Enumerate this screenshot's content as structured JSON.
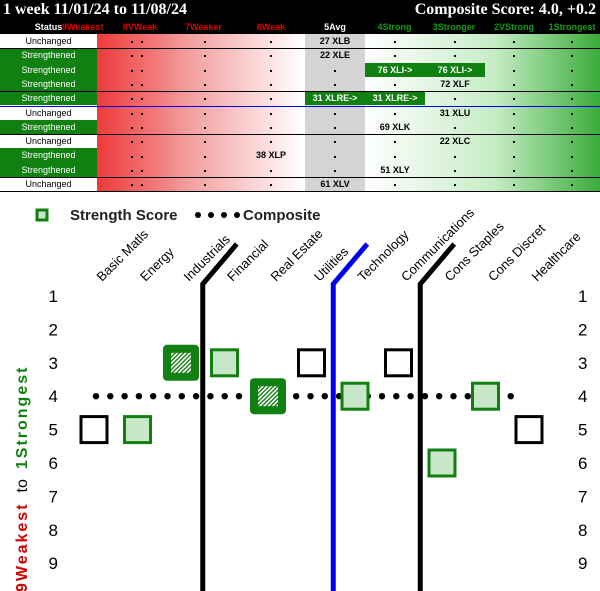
{
  "header": {
    "title": "1 week 11/01/24 to 11/08/24",
    "composite": "Composite Score: 4.0, +0.2"
  },
  "table": {
    "status_label": "Status",
    "columns": [
      "9Weakest",
      "8VWeak",
      "7Weaker",
      "6Weak",
      "5Avg",
      "4Strong",
      "3Stronger",
      "2VStrong",
      "1Strongest"
    ],
    "column_colors": [
      "#e00000",
      "#e00000",
      "#e00000",
      "#e00000",
      "#ffffff",
      "#10a010",
      "#10a010",
      "#10a010",
      "#10a010"
    ],
    "rows": [
      {
        "status": "Unchanged",
        "cells": {
          "4": "27 XLB"
        }
      },
      {
        "status": "Strengthened",
        "cells": {
          "4": "22 XLE"
        }
      },
      {
        "status": "Strengthened",
        "cells": {
          "5": "76 XLI->",
          "6": "76 XLI->"
        },
        "green": [
          5,
          6
        ]
      },
      {
        "status": "Strengthened",
        "cells": {
          "6": "72 XLF"
        }
      },
      {
        "status": "Strengthened",
        "cells": {
          "4": "31 XLRE->",
          "5": "31 XLRE->"
        },
        "green": [
          4,
          5
        ]
      },
      {
        "status": "Unchanged",
        "cells": {
          "6": "31 XLU"
        }
      },
      {
        "status": "Strengthened",
        "cells": {
          "5": "69 XLK"
        }
      },
      {
        "status": "Unchanged",
        "cells": {
          "6": "22 XLC"
        }
      },
      {
        "status": "Strengthened",
        "cells": {
          "3": "38 XLP"
        }
      },
      {
        "status": "Strengthened",
        "cells": {
          "5": "51 XLY"
        }
      },
      {
        "status": "Unchanged",
        "cells": {
          "4": "61 XLV"
        }
      }
    ]
  },
  "chart_data": {
    "type": "scatter",
    "legend": {
      "strength_label": "Strength Score",
      "composite_label": "Composite"
    },
    "ylabel_weak": "9Weakest",
    "ylabel_to": "to",
    "ylabel_strong": "1Strongest",
    "categories": [
      "Basic Matls",
      "Energy",
      "Industrials",
      "Financial",
      "Real Estate",
      "Utilities",
      "Technology",
      "Communications",
      "Cons Staples",
      "Cons Discret",
      "Healthcare"
    ],
    "yticks": [
      "1",
      "2",
      "3",
      "4",
      "5",
      "6",
      "7",
      "8",
      "9"
    ],
    "composite": 4.0,
    "points": [
      {
        "sector": "Basic Matls",
        "value": 5,
        "style": "outline"
      },
      {
        "sector": "Energy",
        "value": 5,
        "style": "filled"
      },
      {
        "sector": "Industrials",
        "value": 3,
        "style": "prev"
      },
      {
        "sector": "Financial",
        "value": 3,
        "style": "filled"
      },
      {
        "sector": "Real Estate",
        "value": 4,
        "style": "prev"
      },
      {
        "sector": "Utilities",
        "value": 3,
        "style": "outline"
      },
      {
        "sector": "Technology",
        "value": 4,
        "style": "filled"
      },
      {
        "sector": "Communications",
        "value": 3,
        "style": "outline"
      },
      {
        "sector": "Cons Staples",
        "value": 6,
        "style": "filled"
      },
      {
        "sector": "Cons Discret",
        "value": 4,
        "style": "filled"
      },
      {
        "sector": "Healthcare",
        "value": 5,
        "style": "outline"
      }
    ],
    "dividers": [
      {
        "after": "Industrials",
        "color": "#000000"
      },
      {
        "after": "Utilities",
        "color": "#0000ee"
      },
      {
        "after": "Communications",
        "color": "#000000"
      }
    ],
    "ylim": [
      1,
      9
    ]
  }
}
